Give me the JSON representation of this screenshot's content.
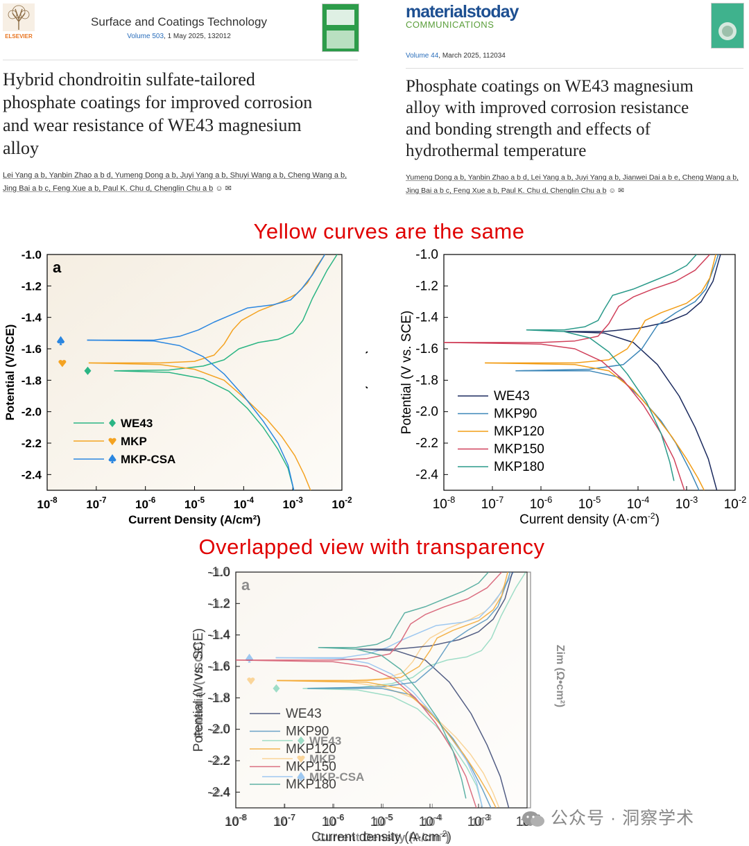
{
  "left_article": {
    "publisher": "ELSEVIER",
    "journal": "Surface and Coatings Technology",
    "volume_link": "Volume 503",
    "volume_rest": ", 1 May 2025, 132012",
    "title_lines": [
      "Hybrid chondroitin sulfate-tailored",
      "phosphate coatings for improved corrosion",
      "and wear resistance of WE43 magnesium",
      "alloy"
    ],
    "authors_line1": "Lei Yang a b, Yanbin Zhao a b d, Yumeng Dong a b, Juyi Yang a b, Shuyi Wang a b, Cheng Wang a b,",
    "authors_line2": "Jing Bai a b c, Feng Xue a b, Paul K. Chu d, Chenglin Chu a b"
  },
  "right_article": {
    "brand": "materialstoday",
    "brand_sub": "COMMUNICATIONS",
    "volume_link": "Volume 44",
    "volume_rest": ", March 2025, 112034",
    "title_lines": [
      "Phosphate coatings on WE43 magnesium",
      "alloy with improved corrosion resistance",
      "and bonding strength and effects of",
      "hydrothermal temperature"
    ],
    "authors_line1": "Yumeng Dong a b, Yanbin Zhao a b d, Lei Yang a b, Juyi Yang a b, Jianwei Dai a b e, Cheng Wang a b,",
    "authors_line2": "Jing Bai a b c, Feng Xue a b, Paul K. Chu d, Chenglin Chu a b"
  },
  "banner_top": "Yellow curves are the same",
  "banner_bottom": "Overlapped view with transparency",
  "watermark": "公众号 · 洞察学术",
  "colors": {
    "banner": "#e00000",
    "WE43_a": "#2bb584",
    "MKP_a": "#f4a322",
    "MKPCSA_a": "#2a86e0",
    "WE43_b": "#1b2a5e",
    "MKP90_b": "#3b86b8",
    "MKP120_b": "#f29d16",
    "MKP150_b": "#d0405a",
    "MKP180_b": "#2a9a8a"
  },
  "chart_data": [
    {
      "type": "line",
      "panel_label": "a",
      "xlabel": "Current Density (A/cm²)",
      "ylabel": "Potential (V/SCE)",
      "y2label": "Zim (Ω•cm²)",
      "x_scale": "log",
      "xlim": [
        1e-08,
        0.01
      ],
      "ylim": [
        -2.5,
        -1.0
      ],
      "x_ticks": [
        "10-8",
        "10-7",
        "10-6",
        "10-5",
        "10-4",
        "10-3",
        "10-2"
      ],
      "y_ticks": [
        "-1.0",
        "-1.2",
        "-1.4",
        "-1.6",
        "-1.8",
        "-2.0",
        "-2.2",
        "-2.4"
      ],
      "legend": "lower-left",
      "series": [
        {
          "name": "WE43",
          "marker": "diamond",
          "corrosion_potential": -1.74,
          "corrosion_current": 2.3e-07,
          "anodic": [
            [
              2.3e-07,
              -1.74
            ],
            [
              3e-06,
              -1.735
            ],
            [
              1.5e-05,
              -1.71
            ],
            [
              4e-05,
              -1.67
            ],
            [
              8e-05,
              -1.6
            ],
            [
              0.0002,
              -1.56
            ],
            [
              0.0005,
              -1.54
            ],
            [
              0.001,
              -1.5
            ],
            [
              0.0016,
              -1.42
            ],
            [
              0.0025,
              -1.28
            ],
            [
              0.005,
              -1.1
            ],
            [
              0.008,
              -1.0
            ]
          ],
          "cathodic": [
            [
              2.3e-07,
              -1.74
            ],
            [
              3e-06,
              -1.75
            ],
            [
              1.5e-05,
              -1.79
            ],
            [
              5e-05,
              -1.87
            ],
            [
              0.00012,
              -1.98
            ],
            [
              0.00025,
              -2.1
            ],
            [
              0.0005,
              -2.24
            ],
            [
              0.0008,
              -2.36
            ],
            [
              0.00105,
              -2.5
            ]
          ]
        },
        {
          "name": "MKP",
          "marker": "heart",
          "corrosion_potential": -1.69,
          "corrosion_current": 7e-08,
          "anodic": [
            [
              7e-08,
              -1.69
            ],
            [
              2e-06,
              -1.69
            ],
            [
              1e-05,
              -1.68
            ],
            [
              2.5e-05,
              -1.64
            ],
            [
              4e-05,
              -1.57
            ],
            [
              6e-05,
              -1.48
            ],
            [
              9e-05,
              -1.42
            ],
            [
              0.0002,
              -1.36
            ],
            [
              0.0006,
              -1.3
            ],
            [
              0.0012,
              -1.25
            ],
            [
              0.002,
              -1.18
            ],
            [
              0.003,
              -1.08
            ],
            [
              0.0045,
              -1.0
            ]
          ],
          "cathodic": [
            [
              7e-08,
              -1.69
            ],
            [
              2e-06,
              -1.7
            ],
            [
              1e-05,
              -1.73
            ],
            [
              4e-05,
              -1.8
            ],
            [
              0.00012,
              -1.93
            ],
            [
              0.0003,
              -2.05
            ],
            [
              0.0006,
              -2.16
            ],
            [
              0.0011,
              -2.28
            ],
            [
              0.0017,
              -2.4
            ],
            [
              0.0023,
              -2.5
            ]
          ]
        },
        {
          "name": "MKP-CSA",
          "marker": "spade",
          "corrosion_potential": -1.55,
          "corrosion_current": 6.5e-08,
          "anodic": [
            [
              6.5e-08,
              -1.545
            ],
            [
              1.5e-06,
              -1.545
            ],
            [
              5e-06,
              -1.52
            ],
            [
              1.2e-05,
              -1.48
            ],
            [
              2.5e-05,
              -1.43
            ],
            [
              5e-05,
              -1.39
            ],
            [
              0.00012,
              -1.34
            ],
            [
              0.0004,
              -1.32
            ],
            [
              0.0009,
              -1.29
            ],
            [
              0.0015,
              -1.22
            ],
            [
              0.0025,
              -1.13
            ],
            [
              0.0045,
              -1.0
            ]
          ],
          "cathodic": [
            [
              6.5e-08,
              -1.545
            ],
            [
              1.5e-06,
              -1.55
            ],
            [
              5e-06,
              -1.58
            ],
            [
              1.5e-05,
              -1.65
            ],
            [
              4e-05,
              -1.76
            ],
            [
              0.0001,
              -1.9
            ],
            [
              0.00025,
              -2.06
            ],
            [
              0.0005,
              -2.2
            ],
            [
              0.0008,
              -2.34
            ],
            [
              0.00105,
              -2.5
            ]
          ]
        }
      ]
    },
    {
      "type": "line",
      "xlabel": "Current density (A·cm-2)",
      "ylabel": "Potential (V vs. SCE)",
      "x_scale": "log",
      "xlim": [
        1e-08,
        0.01
      ],
      "ylim": [
        -2.5,
        -1.0
      ],
      "x_ticks": [
        "10-8",
        "10-7",
        "10-6",
        "10-5",
        "10-4",
        "10-3",
        "10-2"
      ],
      "y_ticks": [
        "-1.0",
        "-1.2",
        "-1.4",
        "-1.6",
        "-1.8",
        "-2.0",
        "-2.2",
        "-2.4"
      ],
      "legend": "lower-left",
      "series": [
        {
          "name": "WE43",
          "anodic": [
            [
              3e-06,
              -1.49
            ],
            [
              2e-05,
              -1.49
            ],
            [
              0.0001,
              -1.47
            ],
            [
              0.0004,
              -1.43
            ],
            [
              0.001,
              -1.38
            ],
            [
              0.002,
              -1.3
            ],
            [
              0.0035,
              -1.17
            ],
            [
              0.0045,
              -1.05
            ],
            [
              0.005,
              -1.0
            ]
          ],
          "cathodic": [
            [
              3e-06,
              -1.49
            ],
            [
              2e-05,
              -1.5
            ],
            [
              8e-05,
              -1.56
            ],
            [
              0.00025,
              -1.7
            ],
            [
              0.0007,
              -1.9
            ],
            [
              0.0015,
              -2.1
            ],
            [
              0.0028,
              -2.3
            ],
            [
              0.0042,
              -2.5
            ]
          ]
        },
        {
          "name": "MKP90",
          "anodic": [
            [
              3e-07,
              -1.74
            ],
            [
              1e-05,
              -1.73
            ],
            [
              5e-05,
              -1.7
            ],
            [
              0.00012,
              -1.6
            ],
            [
              0.00025,
              -1.45
            ],
            [
              0.0006,
              -1.37
            ],
            [
              0.0015,
              -1.3
            ],
            [
              0.0025,
              -1.22
            ],
            [
              0.004,
              -1.05
            ],
            [
              0.0045,
              -1.0
            ]
          ],
          "cathodic": [
            [
              3e-07,
              -1.74
            ],
            [
              1e-05,
              -1.74
            ],
            [
              4e-05,
              -1.78
            ],
            [
              0.00012,
              -1.92
            ],
            [
              0.0003,
              -2.06
            ],
            [
              0.0006,
              -2.2
            ],
            [
              0.0012,
              -2.38
            ],
            [
              0.0018,
              -2.5
            ]
          ]
        },
        {
          "name": "MKP120",
          "anodic": [
            [
              7e-08,
              -1.69
            ],
            [
              5e-06,
              -1.69
            ],
            [
              2.5e-05,
              -1.67
            ],
            [
              6e-05,
              -1.6
            ],
            [
              0.0001,
              -1.5
            ],
            [
              0.00014,
              -1.42
            ],
            [
              0.0003,
              -1.37
            ],
            [
              0.001,
              -1.31
            ],
            [
              0.002,
              -1.24
            ],
            [
              0.003,
              -1.15
            ],
            [
              0.004,
              -1.0
            ]
          ],
          "cathodic": [
            [
              7e-08,
              -1.69
            ],
            [
              5e-06,
              -1.7
            ],
            [
              2.5e-05,
              -1.74
            ],
            [
              8e-05,
              -1.86
            ],
            [
              0.0002,
              -2.0
            ],
            [
              0.0005,
              -2.16
            ],
            [
              0.001,
              -2.3
            ],
            [
              0.0017,
              -2.42
            ],
            [
              0.0023,
              -2.5
            ]
          ]
        },
        {
          "name": "MKP150",
          "anodic": [
            [
              1e-08,
              -1.56
            ],
            [
              1e-06,
              -1.56
            ],
            [
              5e-06,
              -1.55
            ],
            [
              1.5e-05,
              -1.52
            ],
            [
              2.5e-05,
              -1.44
            ],
            [
              4e-05,
              -1.33
            ],
            [
              8e-05,
              -1.27
            ],
            [
              0.0002,
              -1.22
            ],
            [
              0.0006,
              -1.17
            ],
            [
              0.0015,
              -1.1
            ],
            [
              0.003,
              -1.0
            ]
          ],
          "cathodic": [
            [
              1e-08,
              -1.56
            ],
            [
              1e-06,
              -1.57
            ],
            [
              5e-06,
              -1.6
            ],
            [
              1.8e-05,
              -1.68
            ],
            [
              5e-05,
              -1.8
            ],
            [
              0.00013,
              -1.96
            ],
            [
              0.0003,
              -2.14
            ],
            [
              0.00055,
              -2.3
            ],
            [
              0.0009,
              -2.5
            ]
          ]
        },
        {
          "name": "MKP180",
          "anodic": [
            [
              5e-07,
              -1.48
            ],
            [
              3e-06,
              -1.48
            ],
            [
              8e-06,
              -1.46
            ],
            [
              1.5e-05,
              -1.42
            ],
            [
              2e-05,
              -1.35
            ],
            [
              3e-05,
              -1.26
            ],
            [
              8e-05,
              -1.22
            ],
            [
              0.0002,
              -1.17
            ],
            [
              0.0005,
              -1.12
            ],
            [
              0.001,
              -1.07
            ],
            [
              0.0016,
              -1.0
            ]
          ],
          "cathodic": [
            [
              5e-07,
              -1.48
            ],
            [
              3e-06,
              -1.49
            ],
            [
              1e-05,
              -1.53
            ],
            [
              2.5e-05,
              -1.62
            ],
            [
              6e-05,
              -1.76
            ],
            [
              0.00015,
              -1.94
            ],
            [
              0.0003,
              -2.14
            ],
            [
              0.00045,
              -2.32
            ],
            [
              0.00055,
              -2.44
            ]
          ]
        }
      ]
    }
  ]
}
